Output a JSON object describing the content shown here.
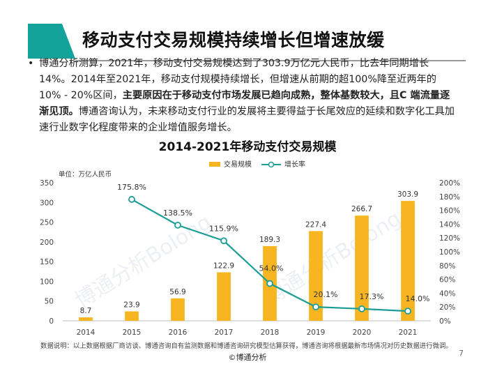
{
  "header": {
    "title": "移动支付交易规模持续增长但增速放缓"
  },
  "body": {
    "bullet": "•",
    "p1": "博通分析测算，2021年，移动支付交易规模达到了303.9万亿元人民币，比去年同期增长14%。2014年至2021年，移动支付规模持续增长，但增速从前期的超100%降至近两年的10% - 20%区间，",
    "p1_bold": "主要原因在于移动支付市场发展已趋向成熟，整体基数较大，且C 端流量逐渐见顶。",
    "p1_tail": "博通咨询认为，未来移动支付行业的发展将主要得益于长尾效应的延续和数字化工具加速行业数字化程度带来的企业增值服务增长。"
  },
  "chart_data": {
    "type": "bar",
    "title": "2014-2021年移动支付交易规模",
    "unit_label": "单位：万亿人民币",
    "categories": [
      "2014",
      "2015",
      "2016",
      "2017",
      "2018",
      "2019",
      "2020",
      "2021"
    ],
    "series": [
      {
        "name": "交易规模",
        "type": "bar",
        "axis": "left",
        "values": [
          8.7,
          23.9,
          56.9,
          122.9,
          189.3,
          227.4,
          266.7,
          303.9
        ],
        "labels": [
          "8.7",
          "23.9",
          "56.9",
          "122.9",
          "189.3",
          "227.4",
          "266.7",
          "303.9"
        ],
        "color": "#f7b621"
      },
      {
        "name": "增长率",
        "type": "line",
        "axis": "right",
        "values": [
          null,
          175.8,
          138.5,
          115.9,
          54.0,
          20.1,
          17.3,
          14.0
        ],
        "labels": [
          "",
          "175.8%",
          "138.5%",
          "115.9%",
          "54.0%",
          "20.1%",
          "17.3%",
          "14.0%"
        ],
        "color": "#1a9e96"
      }
    ],
    "y_left": {
      "min": 0,
      "max": 350,
      "ticks": [
        "0",
        "50",
        "100",
        "150",
        "200",
        "250",
        "300",
        "350"
      ]
    },
    "y_right": {
      "min": 0,
      "max": 200,
      "ticks": [
        "0%",
        "20%",
        "40%",
        "60%",
        "80%",
        "100%",
        "120%",
        "140%",
        "160%",
        "180%",
        "200%"
      ]
    },
    "legend_position": "top-center",
    "grid": false
  },
  "footnote": "数据说明：以上数据根据厂商访谈、博通咨询自有监测数据和博通咨询研究模型估算获得，博通咨询将根据最新市场情况对历史数据进行微调。",
  "copyright": "©博通分析",
  "page_number": "7",
  "watermark": "博通分析Bolong"
}
